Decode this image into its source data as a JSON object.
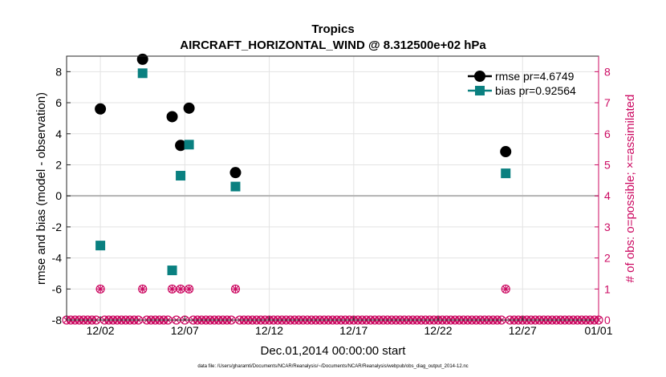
{
  "chart_data": {
    "type": "scatter",
    "title": "Tropics",
    "subtitle": "AIRCRAFT_HORIZONTAL_WIND @ 8.312500e+02 hPa",
    "xlabel": "Dec.01,2014 00:00:00 start",
    "ylabel_left": "rmse and bias (model - observation)",
    "ylabel_right": "# of obs: o=possible; ×=assimilated",
    "xlim": [
      -0.5,
      31
    ],
    "ylim_left": [
      -8,
      9
    ],
    "ylim_right": [
      0,
      8.5
    ],
    "x_ticks": [
      {
        "v": 1.5,
        "label": "12/02"
      },
      {
        "v": 6.5,
        "label": "12/07"
      },
      {
        "v": 11.5,
        "label": "12/12"
      },
      {
        "v": 16.5,
        "label": "12/17"
      },
      {
        "v": 21.5,
        "label": "12/22"
      },
      {
        "v": 26.5,
        "label": "12/27"
      },
      {
        "v": 31,
        "label": "01/01"
      }
    ],
    "y_ticks_left": [
      -8,
      -6,
      -4,
      -2,
      0,
      2,
      4,
      6,
      8
    ],
    "y_tick_labels_left": [
      "-8",
      "-6",
      "-4",
      "-2",
      "0",
      "2",
      "4",
      "6",
      "8"
    ],
    "y_ticks_right": [
      0,
      1,
      2,
      3,
      4,
      5,
      6,
      7,
      8
    ],
    "y_tick_labels_right": [
      "0",
      "1",
      "2",
      "3",
      "4",
      "5",
      "6",
      "7",
      "8"
    ],
    "series": [
      {
        "name": "rmse pr=4.6749",
        "color": "#000000",
        "marker": "circle",
        "x": [
          1.5,
          4.0,
          5.75,
          6.25,
          6.75,
          9.5,
          25.5
        ],
        "values": [
          5.6,
          8.8,
          5.1,
          3.25,
          5.65,
          1.5,
          2.85
        ]
      },
      {
        "name": "bias pr=0.92564",
        "color": "#0a8080",
        "marker": "square",
        "x": [
          1.5,
          4.0,
          5.75,
          6.25,
          6.75,
          9.5,
          25.5
        ],
        "values": [
          -3.2,
          7.9,
          -4.8,
          1.3,
          3.3,
          0.6,
          1.45
        ]
      }
    ],
    "obs_counts": {
      "color": "#cc0a62",
      "x_start": -0.5,
      "x_end": 31,
      "x_step": 0.25,
      "nonzero_x": [
        1.5,
        4.0,
        5.75,
        6.25,
        6.75,
        9.5,
        25.5
      ],
      "nonzero_value": 1
    },
    "legend_position": "top-right",
    "grid": true
  },
  "footnote": "data file: /Users/gharamti/Documents/NCAR/Reanalysis/~/Documents/NCAR/Reanalysis/webpub/obs_diag_output_2014-12.nc"
}
